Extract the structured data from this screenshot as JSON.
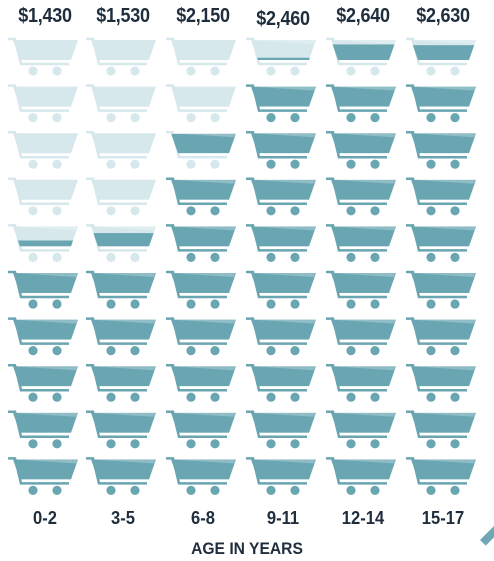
{
  "chart_data": {
    "type": "bar",
    "title": "",
    "xlabel": "AGE IN YEARS",
    "ylabel": "",
    "categories": [
      "0-2",
      "3-5",
      "6-8",
      "9-11",
      "12-14",
      "15-17"
    ],
    "values": [
      1430,
      1530,
      2150,
      2460,
      2640,
      2630
    ],
    "value_labels": [
      "$1,430",
      "$1,530",
      "$2,150",
      "$2,460",
      "$2,640",
      "$2,630"
    ],
    "ylim": [
      0,
      2700
    ],
    "icons_per_column": 10,
    "icon": "shopping-cart-icon",
    "grid": false,
    "legend": "none"
  },
  "colors": {
    "filled": "#6aa6b2",
    "empty": "#d7e8ec",
    "text": "#1f2d3d"
  }
}
